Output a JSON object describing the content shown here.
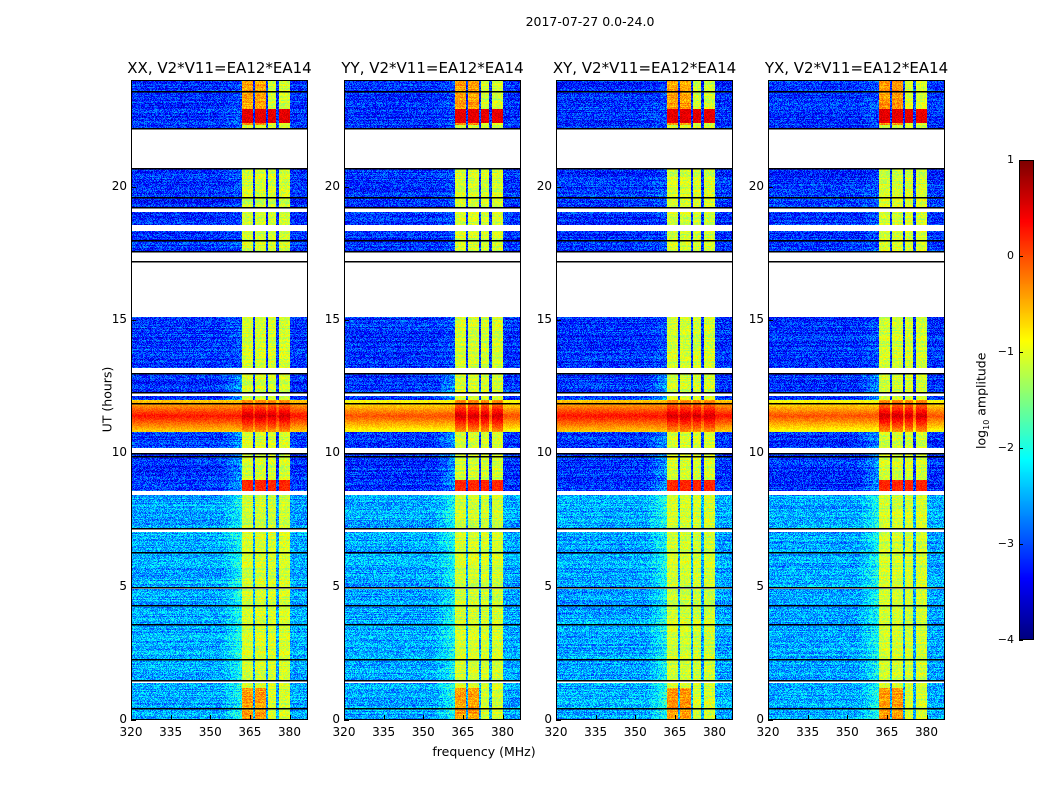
{
  "chart_data": {
    "type": "heatmap",
    "title": "2017-07-27 0.0-24.0",
    "xlabel": "frequency (MHz)",
    "ylabel": "UT (hours)",
    "xlim": [
      320,
      387
    ],
    "ylim": [
      0,
      24
    ],
    "xticks": [
      "320",
      "335",
      "350",
      "365",
      "380"
    ],
    "xtick_values": [
      320,
      335,
      350,
      365,
      380
    ],
    "yticks": [
      "0",
      "5",
      "10",
      "15",
      "20"
    ],
    "ytick_values": [
      0,
      5,
      10,
      15,
      20
    ],
    "colorbar": {
      "label_prefix": "log",
      "label_sub": "10",
      "label_suffix": " amplitude",
      "range": [
        -4,
        1
      ],
      "ticks": [
        "1",
        "0",
        "−1",
        "−2",
        "−3",
        "−4"
      ],
      "tick_values": [
        1,
        0,
        -1,
        -2,
        -3,
        -4
      ],
      "colormap": "jet"
    },
    "panels": [
      {
        "title": "XX, V2*V11=EA12*EA14",
        "seed": 11
      },
      {
        "title": "YY, V2*V11=EA12*EA14",
        "seed": 23
      },
      {
        "title": "XY, V2*V11=EA12*EA14",
        "seed": 37
      },
      {
        "title": "YX, V2*V11=EA12*EA14",
        "seed": 51
      }
    ],
    "flagged_hours": [
      [
        20.7,
        22.2
      ],
      [
        19.05,
        19.25
      ],
      [
        18.35,
        18.55
      ],
      [
        15.1,
        17.6
      ],
      [
        13.0,
        13.2
      ],
      [
        12.15,
        12.3
      ],
      [
        10.0,
        10.2
      ],
      [
        8.45,
        8.6
      ],
      [
        7.05,
        7.15
      ],
      [
        4.9,
        5.0
      ],
      [
        1.4,
        1.5
      ]
    ],
    "scan_boundaries_hours": [
      23.6,
      22.2,
      20.7,
      19.6,
      19.25,
      18.0,
      17.6,
      17.2,
      13.0,
      12.3,
      11.9,
      10.0,
      9.9,
      7.2,
      6.3,
      5.0,
      4.3,
      3.6,
      2.3,
      1.5,
      0.45
    ],
    "rfi_band_mhz": [
      [
        362,
        366
      ],
      [
        367,
        371
      ],
      [
        372,
        375
      ],
      [
        376,
        380
      ]
    ],
    "rfi_level_log10": -1.1,
    "background_level_log10": -2.8,
    "storm_hours": [
      10.8,
      12.0
    ],
    "storm_level_log10": 0.3
  }
}
